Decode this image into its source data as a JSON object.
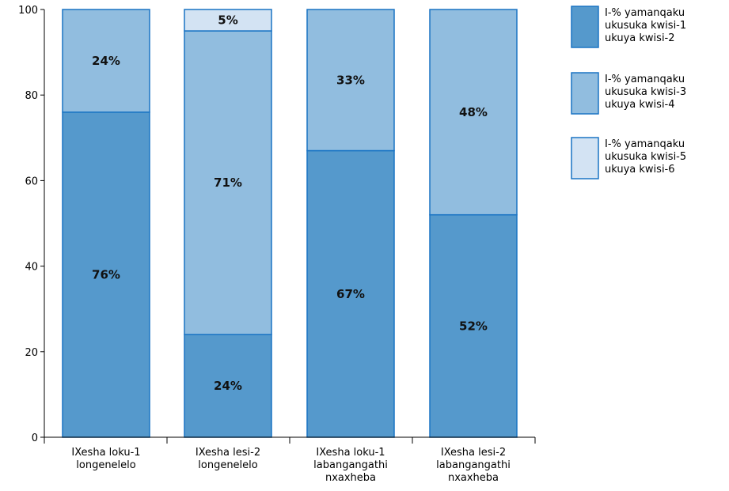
{
  "chart_data": {
    "type": "bar",
    "stacked": true,
    "categories": [
      [
        "IXesha loku-1",
        "longenelelo"
      ],
      [
        "IXesha lesi-2",
        "longenelelo"
      ],
      [
        "IXesha loku-1",
        "labangangathi",
        "nxaxheba"
      ],
      [
        "IXesha lesi-2",
        "labangangathi",
        "nxaxheba"
      ]
    ],
    "series": [
      {
        "name": [
          "I-% yamanqaku",
          "ukusuka kwisi-1",
          "ukuya kwisi-2"
        ],
        "values": [
          76,
          24,
          67,
          52
        ],
        "labels": [
          "76%",
          "24%",
          "67%",
          "52%"
        ],
        "color": "#5599cc"
      },
      {
        "name": [
          "I-% yamanqaku",
          "ukusuka kwisi-3",
          "ukuya kwisi-4"
        ],
        "values": [
          24,
          71,
          33,
          48
        ],
        "labels": [
          "24%",
          "71%",
          "33%",
          "48%"
        ],
        "color": "#91bddf"
      },
      {
        "name": [
          "I-% yamanqaku",
          "ukusuka kwisi-5",
          "ukuya kwisi-6"
        ],
        "values": [
          0,
          5,
          0,
          0
        ],
        "labels": [
          "",
          "5%",
          "",
          ""
        ],
        "color": "#d3e3f3"
      }
    ],
    "border_color": "#1a74c4",
    "yticks": [
      "0",
      "20",
      "40",
      "60",
      "80",
      "100"
    ],
    "ylim": [
      0,
      100
    ],
    "legend_position": "right",
    "grid": false,
    "title": "",
    "xlabel": "",
    "ylabel": ""
  }
}
